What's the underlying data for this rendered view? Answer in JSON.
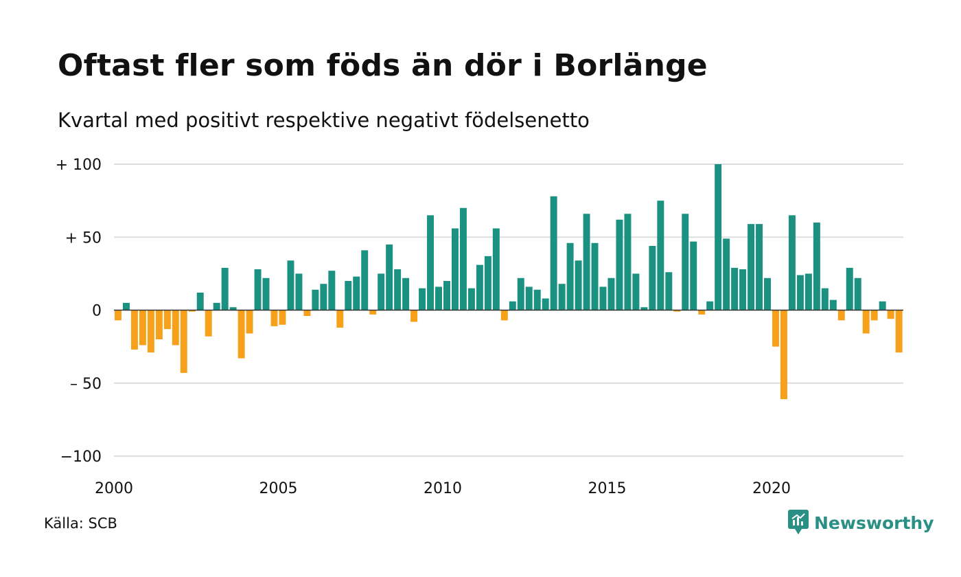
{
  "title": "Oftast fler som föds än dör i Borlänge",
  "subtitle": "Kvartal med positivt respektive negativt födelsenetto",
  "source": "Källa: SCB",
  "brand": {
    "name": "Newsworthy",
    "logo_icon": "chart-speech-bubble-icon"
  },
  "colors": {
    "positive": "#1a9181",
    "negative": "#f7a11a",
    "grid": "#dddddd",
    "zero": "#333333"
  },
  "chart_data": {
    "type": "bar",
    "title": "Oftast fler som föds än dör i Borlänge",
    "subtitle": "Kvartal med positivt respektive negativt födelsenetto",
    "x_start": 2000.0,
    "x_step": 0.25,
    "xlim": [
      2000,
      2024.5
    ],
    "ylim": [
      -100,
      100
    ],
    "y_ticks": [
      {
        "value": 100,
        "label": "+ 100"
      },
      {
        "value": 50,
        "label": "+  50"
      },
      {
        "value": 0,
        "label": "0"
      },
      {
        "value": -50,
        "label": "– 50"
      },
      {
        "value": -100,
        "label": "−100"
      }
    ],
    "x_ticks": [
      {
        "value": 2000,
        "label": "2000"
      },
      {
        "value": 2005,
        "label": "2005"
      },
      {
        "value": 2010,
        "label": "2010"
      },
      {
        "value": 2015,
        "label": "2015"
      },
      {
        "value": 2020,
        "label": "2020"
      }
    ],
    "grid": true,
    "values": [
      -7,
      5,
      -27,
      -24,
      -29,
      -20,
      -13,
      -24,
      -43,
      -1,
      12,
      -18,
      5,
      29,
      2,
      -33,
      -16,
      28,
      22,
      -11,
      -10,
      34,
      25,
      -4,
      14,
      18,
      27,
      -12,
      20,
      23,
      41,
      -3,
      25,
      45,
      28,
      22,
      -8,
      15,
      65,
      16,
      20,
      56,
      70,
      15,
      31,
      37,
      56,
      -7,
      6,
      22,
      16,
      14,
      8,
      78,
      18,
      46,
      34,
      66,
      46,
      16,
      22,
      62,
      66,
      25,
      2,
      44,
      75,
      26,
      -1,
      66,
      47,
      -3,
      6,
      100,
      49,
      29,
      28,
      59,
      59,
      22,
      -25,
      -61,
      65,
      24,
      25,
      60,
      15,
      7,
      -7,
      29,
      22,
      -16,
      -7,
      6,
      -6,
      -29
    ]
  }
}
